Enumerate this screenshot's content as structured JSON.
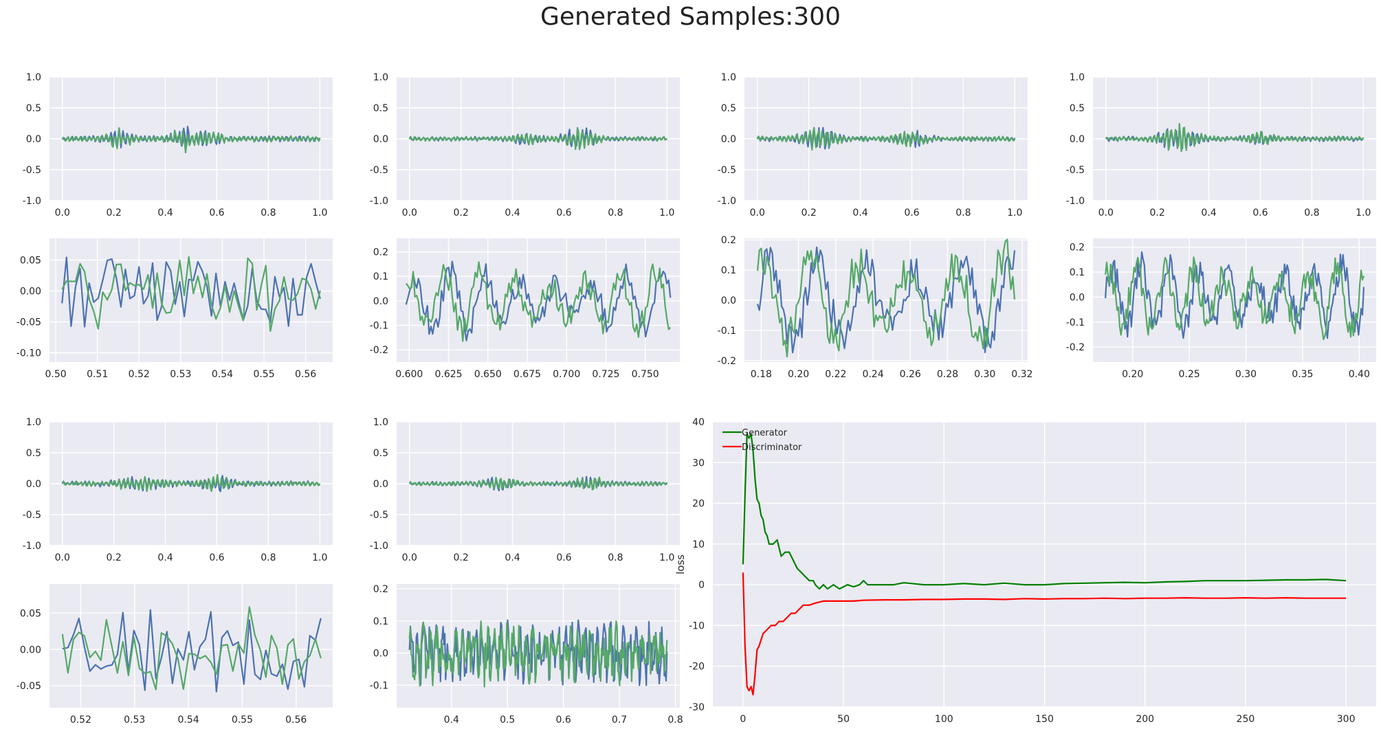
{
  "title": "Generated Samples:300",
  "colors": {
    "background": "#eaeaf2",
    "grid": "#ffffff",
    "real": "#4c72b0",
    "generated": "#55a868",
    "generator_loss": "#008000",
    "discriminator_loss": "#ff0000"
  },
  "chart_data": [
    {
      "id": "s1-full",
      "type": "line",
      "xlim": [
        -0.05,
        1.05
      ],
      "ylim": [
        -1.0,
        1.0
      ],
      "xticks": [
        0.0,
        0.2,
        0.4,
        0.6,
        0.8,
        1.0
      ],
      "yticks": [
        -1.0,
        -0.5,
        0.0,
        0.5,
        1.0
      ],
      "x_decimals": 1,
      "y_decimals": 1,
      "x_range": [
        0.0,
        1.0
      ],
      "n": 260,
      "seed": 11,
      "amp": 0.07,
      "envelope": "bursts",
      "bursts": [
        [
          0.22,
          0.05,
          1.6
        ],
        [
          0.47,
          0.04,
          2.2
        ],
        [
          0.57,
          0.05,
          1.3
        ]
      ],
      "freq": 60
    },
    {
      "id": "s1-zoom",
      "type": "line",
      "xlim": [
        0.4985,
        0.5665
      ],
      "ylim": [
        -0.115,
        0.085
      ],
      "xticks": [
        0.5,
        0.51,
        0.52,
        0.53,
        0.54,
        0.55,
        0.56
      ],
      "yticks": [
        -0.1,
        -0.05,
        0.0,
        0.05
      ],
      "x_decimals": 2,
      "y_decimals": 2,
      "x_range": [
        0.5015,
        0.5635
      ],
      "n": 58,
      "seed": 23,
      "amp": 0.045,
      "envelope": "noise",
      "freq": 18
    },
    {
      "id": "s2-full",
      "type": "line",
      "xlim": [
        -0.05,
        1.05
      ],
      "ylim": [
        -1.0,
        1.0
      ],
      "xticks": [
        0.0,
        0.2,
        0.4,
        0.6,
        0.8,
        1.0
      ],
      "yticks": [
        -1.0,
        -0.5,
        0.0,
        0.5,
        1.0
      ],
      "x_decimals": 1,
      "y_decimals": 1,
      "x_range": [
        0.0,
        1.0
      ],
      "n": 260,
      "seed": 31,
      "amp": 0.05,
      "envelope": "bursts",
      "bursts": [
        [
          0.45,
          0.06,
          1.2
        ],
        [
          0.66,
          0.06,
          3.2
        ]
      ],
      "freq": 60
    },
    {
      "id": "s2-zoom",
      "type": "line",
      "xlim": [
        0.592,
        0.772
      ],
      "ylim": [
        -0.25,
        0.255
      ],
      "xticks": [
        0.6,
        0.625,
        0.65,
        0.675,
        0.7,
        0.725,
        0.75
      ],
      "yticks": [
        -0.2,
        -0.1,
        0.0,
        0.1,
        0.2
      ],
      "x_decimals": 3,
      "y_decimals": 1,
      "x_range": [
        0.598,
        0.766
      ],
      "n": 150,
      "seed": 41,
      "amp": 0.11,
      "envelope": "wave",
      "freq": 7.5
    },
    {
      "id": "s3-full",
      "type": "line",
      "xlim": [
        -0.05,
        1.05
      ],
      "ylim": [
        -1.0,
        1.0
      ],
      "xticks": [
        0.0,
        0.2,
        0.4,
        0.6,
        0.8,
        1.0
      ],
      "yticks": [
        -1.0,
        -0.5,
        0.0,
        0.5,
        1.0
      ],
      "x_decimals": 1,
      "y_decimals": 1,
      "x_range": [
        0.0,
        1.0
      ],
      "n": 260,
      "seed": 53,
      "amp": 0.06,
      "envelope": "bursts",
      "bursts": [
        [
          0.24,
          0.07,
          2.3
        ],
        [
          0.6,
          0.06,
          1.6
        ]
      ],
      "freq": 60
    },
    {
      "id": "s3-zoom",
      "type": "line",
      "xlim": [
        0.171,
        0.323
      ],
      "ylim": [
        -0.205,
        0.205
      ],
      "xticks": [
        0.18,
        0.2,
        0.22,
        0.24,
        0.26,
        0.28,
        0.3,
        0.32
      ],
      "yticks": [
        -0.2,
        -0.1,
        0.0,
        0.1,
        0.2
      ],
      "x_decimals": 2,
      "y_decimals": 1,
      "x_range": [
        0.178,
        0.316
      ],
      "n": 140,
      "seed": 61,
      "amp": 0.14,
      "envelope": "wave",
      "freq": 5.3
    },
    {
      "id": "s4-full",
      "type": "line",
      "xlim": [
        -0.05,
        1.05
      ],
      "ylim": [
        -1.0,
        1.0
      ],
      "xticks": [
        0.0,
        0.2,
        0.4,
        0.6,
        0.8,
        1.0
      ],
      "yticks": [
        -1.0,
        -0.5,
        0.0,
        0.5,
        1.0
      ],
      "x_decimals": 1,
      "y_decimals": 1,
      "x_range": [
        0.0,
        1.0
      ],
      "n": 260,
      "seed": 71,
      "amp": 0.06,
      "envelope": "bursts",
      "bursts": [
        [
          0.28,
          0.07,
          3.0
        ],
        [
          0.6,
          0.05,
          1.2
        ]
      ],
      "freq": 60
    },
    {
      "id": "s4-zoom",
      "type": "line",
      "xlim": [
        0.165,
        0.415
      ],
      "ylim": [
        -0.26,
        0.235
      ],
      "xticks": [
        0.2,
        0.25,
        0.3,
        0.35,
        0.4
      ],
      "yticks": [
        -0.2,
        -0.1,
        0.0,
        0.1,
        0.2
      ],
      "x_decimals": 2,
      "y_decimals": 1,
      "x_range": [
        0.176,
        0.404
      ],
      "n": 200,
      "seed": 83,
      "amp": 0.12,
      "envelope": "wave",
      "freq": 9
    },
    {
      "id": "s5-full",
      "type": "line",
      "xlim": [
        -0.05,
        1.05
      ],
      "ylim": [
        -1.0,
        1.0
      ],
      "xticks": [
        0.0,
        0.2,
        0.4,
        0.6,
        0.8,
        1.0
      ],
      "yticks": [
        -1.0,
        -0.5,
        0.0,
        0.5,
        1.0
      ],
      "x_decimals": 1,
      "y_decimals": 1,
      "x_range": [
        0.0,
        1.0
      ],
      "n": 260,
      "seed": 97,
      "amp": 0.06,
      "envelope": "bursts",
      "bursts": [
        [
          0.3,
          0.1,
          1.2
        ],
        [
          0.6,
          0.06,
          1.6
        ]
      ],
      "freq": 60
    },
    {
      "id": "s5-zoom",
      "type": "line",
      "xlim": [
        0.5142,
        0.5668
      ],
      "ylim": [
        -0.08,
        0.09
      ],
      "xticks": [
        0.52,
        0.53,
        0.54,
        0.55,
        0.56
      ],
      "yticks": [
        -0.05,
        0.0,
        0.05
      ],
      "x_decimals": 2,
      "y_decimals": 2,
      "x_range": [
        0.5166,
        0.5646
      ],
      "n": 48,
      "seed": 101,
      "amp": 0.04,
      "envelope": "noise",
      "freq": 18
    },
    {
      "id": "s6-full",
      "type": "line",
      "xlim": [
        -0.05,
        1.05
      ],
      "ylim": [
        -1.0,
        1.0
      ],
      "xticks": [
        0.0,
        0.2,
        0.4,
        0.6,
        0.8,
        1.0
      ],
      "yticks": [
        -1.0,
        -0.5,
        0.0,
        0.5,
        1.0
      ],
      "x_decimals": 1,
      "y_decimals": 1,
      "x_range": [
        0.0,
        1.0
      ],
      "n": 260,
      "seed": 113,
      "amp": 0.05,
      "envelope": "bursts",
      "bursts": [
        [
          0.35,
          0.06,
          1.5
        ],
        [
          0.7,
          0.06,
          1.8
        ]
      ],
      "freq": 60
    },
    {
      "id": "s6-zoom",
      "type": "line",
      "xlim": [
        0.302,
        0.808
      ],
      "ylim": [
        -0.17,
        0.215
      ],
      "xticks": [
        0.4,
        0.5,
        0.6,
        0.7,
        0.8
      ],
      "yticks": [
        -0.1,
        0.0,
        0.1,
        0.2
      ],
      "x_decimals": 1,
      "y_decimals": 1,
      "x_range": [
        0.325,
        0.785
      ],
      "n": 300,
      "seed": 127,
      "amp": 0.075,
      "envelope": "dense",
      "freq": 40
    },
    {
      "id": "loss",
      "type": "line",
      "xlim": [
        -15,
        315
      ],
      "ylim": [
        -30,
        40
      ],
      "xticks": [
        0,
        50,
        100,
        150,
        200,
        250,
        300
      ],
      "yticks": [
        -30,
        -20,
        -10,
        0,
        10,
        20,
        30,
        40
      ],
      "x_decimals": 0,
      "y_decimals": 0,
      "ylabel": "loss",
      "legend": "upper-left",
      "series": [
        {
          "name": "Generator",
          "color": "#008000",
          "points": [
            [
              0,
              5
            ],
            [
              1,
              22
            ],
            [
              2,
              37
            ],
            [
              3,
              36
            ],
            [
              4,
              37
            ],
            [
              5,
              33
            ],
            [
              6,
              26
            ],
            [
              7,
              21
            ],
            [
              8,
              20
            ],
            [
              9,
              17
            ],
            [
              10,
              16
            ],
            [
              11,
              13
            ],
            [
              12,
              12
            ],
            [
              13,
              10
            ],
            [
              15,
              10
            ],
            [
              17,
              11
            ],
            [
              18,
              9
            ],
            [
              19,
              7
            ],
            [
              21,
              8
            ],
            [
              23,
              8
            ],
            [
              25,
              6
            ],
            [
              27,
              4
            ],
            [
              29,
              3
            ],
            [
              31,
              2
            ],
            [
              33,
              1
            ],
            [
              35,
              1
            ],
            [
              36,
              0
            ],
            [
              38,
              -1
            ],
            [
              40,
              0
            ],
            [
              42,
              -1
            ],
            [
              45,
              0
            ],
            [
              48,
              -1
            ],
            [
              52,
              0
            ],
            [
              55,
              -0.5
            ],
            [
              58,
              0
            ],
            [
              60,
              1
            ],
            [
              62,
              0
            ],
            [
              65,
              0
            ],
            [
              70,
              0
            ],
            [
              75,
              0
            ],
            [
              80,
              0.5
            ],
            [
              90,
              0
            ],
            [
              100,
              0
            ],
            [
              110,
              0.3
            ],
            [
              120,
              0
            ],
            [
              130,
              0.4
            ],
            [
              140,
              0
            ],
            [
              150,
              0
            ],
            [
              160,
              0.3
            ],
            [
              170,
              0.4
            ],
            [
              180,
              0.5
            ],
            [
              190,
              0.6
            ],
            [
              200,
              0.5
            ],
            [
              210,
              0.7
            ],
            [
              220,
              0.8
            ],
            [
              230,
              1
            ],
            [
              240,
              1
            ],
            [
              250,
              1
            ],
            [
              260,
              1.1
            ],
            [
              270,
              1.2
            ],
            [
              280,
              1.2
            ],
            [
              290,
              1.3
            ],
            [
              300,
              1
            ]
          ]
        },
        {
          "name": "Discriminator",
          "color": "#ff0000",
          "points": [
            [
              0,
              3
            ],
            [
              1,
              -15
            ],
            [
              2,
              -25
            ],
            [
              3,
              -26
            ],
            [
              4,
              -25
            ],
            [
              5,
              -27
            ],
            [
              6,
              -22
            ],
            [
              7,
              -16
            ],
            [
              8,
              -15
            ],
            [
              10,
              -12
            ],
            [
              12,
              -11
            ],
            [
              14,
              -10
            ],
            [
              16,
              -10
            ],
            [
              18,
              -9
            ],
            [
              20,
              -9
            ],
            [
              22,
              -8
            ],
            [
              24,
              -7
            ],
            [
              26,
              -7
            ],
            [
              28,
              -6
            ],
            [
              30,
              -5
            ],
            [
              33,
              -5
            ],
            [
              36,
              -4.5
            ],
            [
              40,
              -4
            ],
            [
              45,
              -4
            ],
            [
              50,
              -4
            ],
            [
              55,
              -4
            ],
            [
              60,
              -3.8
            ],
            [
              70,
              -3.7
            ],
            [
              80,
              -3.7
            ],
            [
              90,
              -3.6
            ],
            [
              100,
              -3.6
            ],
            [
              110,
              -3.5
            ],
            [
              120,
              -3.5
            ],
            [
              130,
              -3.6
            ],
            [
              140,
              -3.4
            ],
            [
              150,
              -3.5
            ],
            [
              160,
              -3.4
            ],
            [
              170,
              -3.4
            ],
            [
              180,
              -3.3
            ],
            [
              190,
              -3.4
            ],
            [
              200,
              -3.3
            ],
            [
              210,
              -3.3
            ],
            [
              220,
              -3.2
            ],
            [
              230,
              -3.3
            ],
            [
              240,
              -3.3
            ],
            [
              250,
              -3.2
            ],
            [
              260,
              -3.3
            ],
            [
              270,
              -3.2
            ],
            [
              280,
              -3.3
            ],
            [
              290,
              -3.3
            ],
            [
              300,
              -3.3
            ]
          ]
        }
      ]
    }
  ]
}
